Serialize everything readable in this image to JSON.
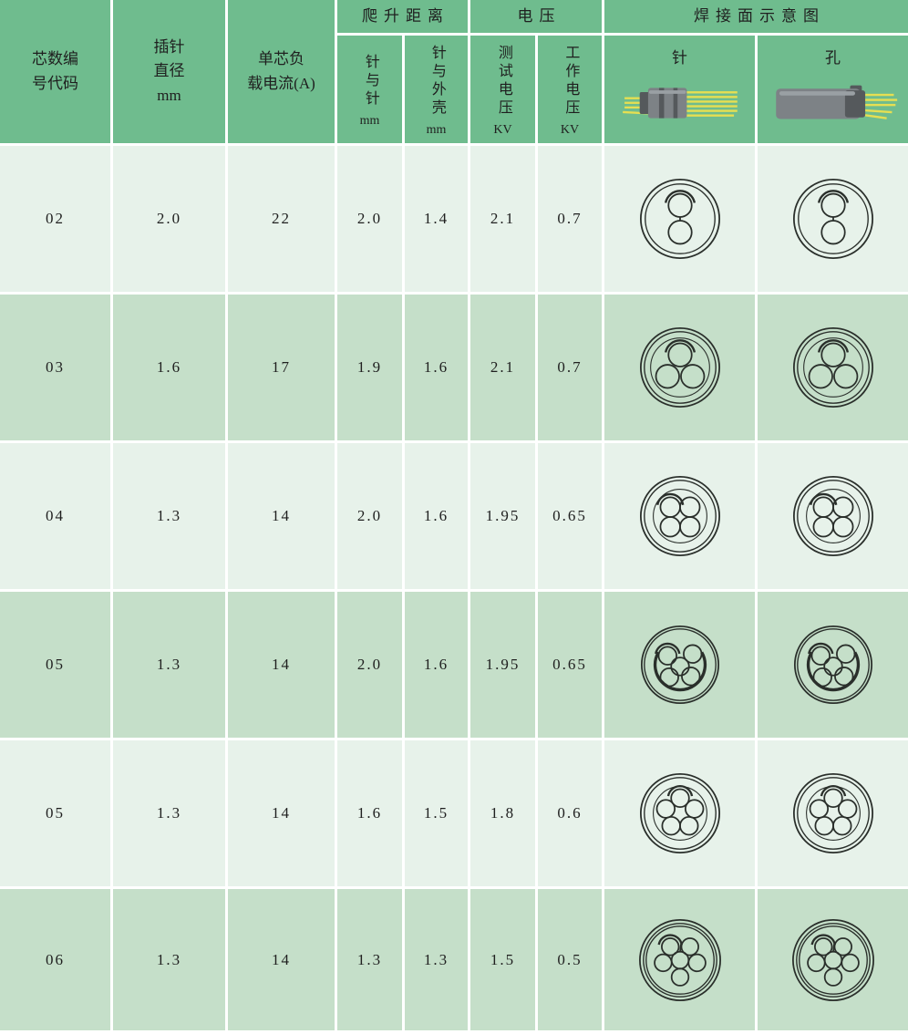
{
  "colors": {
    "header_green": "#6fbc8e",
    "row_light": "#e7f2ea",
    "row_dark": "#c5dfc9",
    "grid_line": "#ffffff",
    "text": "#1f1f1f",
    "diagram_line": "#2a2f2b",
    "metal_gray": "#7d8286",
    "metal_gray_dark": "#55595c",
    "metal_gray_light": "#9aa0a4",
    "pin_yellow": "#e6df52"
  },
  "table": {
    "header": {
      "core_code": "芯数编\n号代码",
      "pin_diameter": "插针\n直径\nmm",
      "load_current": "单芯负\n载电流(A)",
      "creepage_group": "爬升距离",
      "voltage_group": "电压",
      "solder_group": "焊接面示意图",
      "pin_to_pin": {
        "zh": "针与针",
        "unit": "mm"
      },
      "pin_to_shell": {
        "zh": "针与外壳",
        "unit": "mm"
      },
      "test_voltage": {
        "zh": "测试电压",
        "unit": "KV"
      },
      "working_voltage": {
        "zh": "工作电压",
        "unit": "KV"
      },
      "pin_label": "针",
      "hole_label": "孔"
    },
    "rows": [
      {
        "code": "02",
        "pin_diameter": "2.0",
        "load_current": "22",
        "pin_to_pin": "2.0",
        "pin_to_shell": "1.4",
        "test_voltage": "2.1",
        "working_voltage": "0.7",
        "diagram": "d2"
      },
      {
        "code": "03",
        "pin_diameter": "1.6",
        "load_current": "17",
        "pin_to_pin": "1.9",
        "pin_to_shell": "1.6",
        "test_voltage": "2.1",
        "working_voltage": "0.7",
        "diagram": "d3"
      },
      {
        "code": "04",
        "pin_diameter": "1.3",
        "load_current": "14",
        "pin_to_pin": "2.0",
        "pin_to_shell": "1.6",
        "test_voltage": "1.95",
        "working_voltage": "0.65",
        "diagram": "d4"
      },
      {
        "code": "05",
        "pin_diameter": "1.3",
        "load_current": "14",
        "pin_to_pin": "2.0",
        "pin_to_shell": "1.6",
        "test_voltage": "1.95",
        "working_voltage": "0.65",
        "diagram": "d5a"
      },
      {
        "code": "05",
        "pin_diameter": "1.3",
        "load_current": "14",
        "pin_to_pin": "1.6",
        "pin_to_shell": "1.5",
        "test_voltage": "1.8",
        "working_voltage": "0.6",
        "diagram": "d5b"
      },
      {
        "code": "06",
        "pin_diameter": "1.3",
        "load_current": "14",
        "pin_to_pin": "1.3",
        "pin_to_shell": "1.3",
        "test_voltage": "1.5",
        "working_voltage": "0.5",
        "diagram": "d6"
      }
    ],
    "diagrams": {
      "d2": {
        "rings": [
          44,
          39
        ],
        "inner": null,
        "thick": false,
        "pin_r": 13,
        "pins": [
          [
            50,
            35
          ],
          [
            50,
            65
          ]
        ],
        "link": [
          [
            50,
            48
          ],
          [
            50,
            52
          ]
        ]
      },
      "d3": {
        "rings": [
          44,
          40
        ],
        "inner": 33,
        "thick": false,
        "pin_r": 13,
        "pins": [
          [
            50,
            36
          ],
          [
            36,
            60
          ],
          [
            64,
            60
          ]
        ],
        "link": null
      },
      "d4": {
        "rings": [
          44,
          40
        ],
        "inner": 30,
        "thick": false,
        "pin_r": 11,
        "pins": [
          [
            39,
            40
          ],
          [
            61,
            40
          ],
          [
            39,
            62
          ],
          [
            61,
            62
          ]
        ],
        "link": null
      },
      "d5a": {
        "rings": [
          43,
          40
        ],
        "inner": null,
        "thick": true,
        "pin_r": 10,
        "pins": [
          [
            36,
            40
          ],
          [
            64,
            38
          ],
          [
            50,
            52
          ],
          [
            38,
            64
          ],
          [
            62,
            63
          ]
        ],
        "link": null
      },
      "d5b": {
        "rings": [
          44,
          40
        ],
        "inner": 30,
        "thick": false,
        "pin_r": 10,
        "pins": [
          [
            50,
            33
          ],
          [
            34,
            45
          ],
          [
            66,
            45
          ],
          [
            40,
            64
          ],
          [
            60,
            64
          ]
        ],
        "link": null
      },
      "d6": {
        "rings": [
          45,
          41,
          38
        ],
        "inner": null,
        "thick": false,
        "pin_r": 9.5,
        "pins": [
          [
            39,
            35
          ],
          [
            61,
            35
          ],
          [
            31,
            53
          ],
          [
            50,
            50
          ],
          [
            69,
            53
          ],
          [
            50,
            69
          ]
        ],
        "link": [
          [
            51,
            32
          ],
          [
            50,
            41
          ]
        ]
      }
    }
  }
}
